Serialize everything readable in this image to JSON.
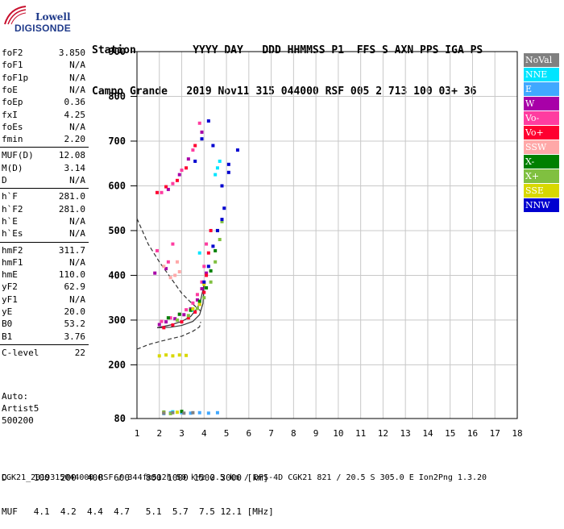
{
  "logo": {
    "line1": "Lowell",
    "line2": "DIGISONDE"
  },
  "header": {
    "row1": "Station         YYYY DAY   DDD HHMMSS P1  FFS S AXN PPS IGA PS",
    "row2": "Campo Grande   2019 Nov11 315 044000 RSF 005 2 713 100 03+ 36"
  },
  "params": [
    {
      "key": "foF2",
      "value": "3.850"
    },
    {
      "key": "foF1",
      "value": "N/A"
    },
    {
      "key": "foF1p",
      "value": "N/A"
    },
    {
      "key": "foE",
      "value": "N/A"
    },
    {
      "key": "foEp",
      "value": "0.36"
    },
    {
      "key": "fxI",
      "value": "4.25"
    },
    {
      "key": "foEs",
      "value": "N/A"
    },
    {
      "key": "fmin",
      "value": "2.20"
    },
    {
      "key": "MUF(D)",
      "value": "12.08"
    },
    {
      "key": "M(D)",
      "value": "3.14"
    },
    {
      "key": "D",
      "value": "N/A"
    },
    {
      "key": "h`F",
      "value": "281.0"
    },
    {
      "key": "h`F2",
      "value": "281.0"
    },
    {
      "key": "h`E",
      "value": "N/A"
    },
    {
      "key": "h`Es",
      "value": "N/A"
    },
    {
      "key": "hmF2",
      "value": "311.7"
    },
    {
      "key": "hmF1",
      "value": "N/A"
    },
    {
      "key": "hmE",
      "value": "110.0"
    },
    {
      "key": "yF2",
      "value": "62.9"
    },
    {
      "key": "yF1",
      "value": "N/A"
    },
    {
      "key": "yE",
      "value": "20.0"
    },
    {
      "key": "B0",
      "value": "53.2"
    },
    {
      "key": "B1",
      "value": "3.76"
    },
    {
      "key": "C-level",
      "value": "22"
    }
  ],
  "auto": {
    "line1": "Auto:",
    "line2": "Artist5",
    "line3": "500200"
  },
  "legend": [
    {
      "label": "NoVal",
      "bg": "#808080",
      "fg": "#ffffff"
    },
    {
      "label": "NNE",
      "bg": "#00e5ff",
      "fg": "#ffffff"
    },
    {
      "label": "E",
      "bg": "#40a8ff",
      "fg": "#ffffff"
    },
    {
      "label": "W",
      "bg": "#a800a8",
      "fg": "#ffffff"
    },
    {
      "label": "Vo-",
      "bg": "#ff3ca0",
      "fg": "#ffffff"
    },
    {
      "label": "Vo+",
      "bg": "#ff0030",
      "fg": "#ffffff"
    },
    {
      "label": "SSW",
      "bg": "#ffa8a8",
      "fg": "#ffffff"
    },
    {
      "label": "X-",
      "bg": "#008000",
      "fg": "#ffffff"
    },
    {
      "label": "X+",
      "bg": "#80c040",
      "fg": "#ffffff"
    },
    {
      "label": "SSE",
      "bg": "#d8d800",
      "fg": "#ffffff"
    },
    {
      "label": "NNW",
      "bg": "#0000d0",
      "fg": "#ffffff"
    }
  ],
  "bottom": {
    "row1": "D     100  200  400  600   800 1000 1500 3000 [km]",
    "row2": "MUF   4.1  4.2  4.4  4.7   5.1  5.7  7.5 12.1 [MHz]"
  },
  "footer": "CGK21_2019315044000.RSF / 344fx512h 50 kHz 2.5 km / DPS-4D CGK21 821 / 20.5 S 305.0 E Ion2Png 1.3.20",
  "chart_data": {
    "type": "scatter",
    "xlabel": "",
    "ylabel": "",
    "xlim": [
      1,
      18
    ],
    "ylim": [
      80,
      900
    ],
    "x_ticks": [
      1,
      2,
      3,
      4,
      5,
      6,
      7,
      8,
      9,
      10,
      11,
      12,
      13,
      14,
      15,
      16,
      17,
      18
    ],
    "y_ticks": [
      80,
      200,
      300,
      400,
      500,
      600,
      700,
      800,
      900
    ],
    "grid": true,
    "series": [
      {
        "name": "NNE",
        "color": "#00e5ff",
        "points": [
          [
            4.6,
            640
          ],
          [
            4.7,
            655
          ],
          [
            4.5,
            625
          ],
          [
            3.8,
            450
          ],
          [
            3.5,
            322
          ],
          [
            2.6,
            95
          ]
        ]
      },
      {
        "name": "E",
        "color": "#40a8ff",
        "points": [
          [
            3.0,
            93
          ],
          [
            3.4,
            92
          ],
          [
            3.8,
            93
          ],
          [
            4.2,
            92
          ],
          [
            4.6,
            93
          ],
          [
            2.2,
            91
          ],
          [
            2.5,
            93
          ]
        ]
      },
      {
        "name": "W",
        "color": "#a800a8",
        "points": [
          [
            2.0,
            290
          ],
          [
            2.3,
            296
          ],
          [
            2.7,
            303
          ],
          [
            3.1,
            312
          ],
          [
            3.4,
            325
          ],
          [
            3.7,
            345
          ],
          [
            3.9,
            370
          ],
          [
            4.1,
            405
          ],
          [
            2.4,
            592
          ],
          [
            2.9,
            625
          ],
          [
            3.3,
            660
          ],
          [
            3.9,
            720
          ],
          [
            1.8,
            405
          ],
          [
            2.3,
            415
          ]
        ]
      },
      {
        "name": "Vo-",
        "color": "#ff3ca0",
        "points": [
          [
            2.1,
            297
          ],
          [
            2.5,
            305
          ],
          [
            2.9,
            313
          ],
          [
            3.2,
            323
          ],
          [
            3.5,
            338
          ],
          [
            3.7,
            357
          ],
          [
            3.9,
            385
          ],
          [
            4.0,
            420
          ],
          [
            4.1,
            470
          ],
          [
            2.1,
            585
          ],
          [
            2.6,
            605
          ],
          [
            3.0,
            635
          ],
          [
            3.5,
            680
          ],
          [
            3.8,
            740
          ],
          [
            1.9,
            455
          ],
          [
            2.4,
            430
          ],
          [
            2.6,
            470
          ]
        ]
      },
      {
        "name": "Vo+",
        "color": "#ff0030",
        "points": [
          [
            2.2,
            283
          ],
          [
            2.6,
            289
          ],
          [
            3.0,
            296
          ],
          [
            3.3,
            305
          ],
          [
            3.6,
            318
          ],
          [
            3.8,
            335
          ],
          [
            4.0,
            362
          ],
          [
            4.1,
            400
          ],
          [
            4.2,
            450
          ],
          [
            4.3,
            500
          ],
          [
            1.9,
            585
          ],
          [
            2.3,
            598
          ],
          [
            2.8,
            612
          ],
          [
            3.2,
            640
          ],
          [
            3.6,
            690
          ]
        ]
      },
      {
        "name": "SSW",
        "color": "#ffa8a8",
        "points": [
          [
            2.5,
            395
          ],
          [
            2.7,
            400
          ],
          [
            2.9,
            408
          ],
          [
            2.8,
            430
          ],
          [
            2.2,
            420
          ]
        ]
      },
      {
        "name": "X-",
        "color": "#008000",
        "points": [
          [
            2.4,
            305
          ],
          [
            2.9,
            313
          ],
          [
            3.4,
            322
          ],
          [
            3.8,
            342
          ],
          [
            4.1,
            372
          ],
          [
            4.3,
            410
          ],
          [
            4.5,
            455
          ],
          [
            4.6,
            500
          ],
          [
            2.2,
            94
          ],
          [
            3.0,
            96
          ]
        ]
      },
      {
        "name": "X+",
        "color": "#80c040",
        "points": [
          [
            2.8,
            300
          ],
          [
            3.3,
            310
          ],
          [
            3.7,
            326
          ],
          [
            4.0,
            350
          ],
          [
            4.3,
            385
          ],
          [
            4.5,
            430
          ],
          [
            4.7,
            480
          ],
          [
            4.8,
            520
          ],
          [
            2.5,
            91
          ]
        ]
      },
      {
        "name": "SSE",
        "color": "#d8d800",
        "points": [
          [
            2.0,
            220
          ],
          [
            2.3,
            222
          ],
          [
            2.6,
            220
          ],
          [
            2.9,
            222
          ],
          [
            3.2,
            221
          ],
          [
            3.5,
            325
          ],
          [
            3.8,
            335
          ],
          [
            4.0,
            380
          ],
          [
            2.2,
            93
          ],
          [
            2.8,
            94
          ]
        ]
      },
      {
        "name": "NNW",
        "color": "#0000d0",
        "points": [
          [
            4.0,
            385
          ],
          [
            4.2,
            420
          ],
          [
            4.4,
            465
          ],
          [
            4.6,
            500
          ],
          [
            4.8,
            525
          ],
          [
            4.9,
            550
          ],
          [
            3.6,
            655
          ],
          [
            3.9,
            705
          ],
          [
            4.2,
            745
          ],
          [
            4.4,
            690
          ],
          [
            4.8,
            600
          ],
          [
            5.1,
            648
          ],
          [
            5.1,
            630
          ],
          [
            5.5,
            680
          ]
        ]
      },
      {
        "name": "NoVal",
        "color": "#808080",
        "points": [
          [
            2.2,
            92
          ],
          [
            2.6,
            93
          ],
          [
            3.1,
            92
          ],
          [
            3.5,
            93
          ]
        ]
      }
    ],
    "lines": [
      {
        "style": "dashed",
        "points": [
          [
            1.0,
            527
          ],
          [
            1.5,
            470
          ],
          [
            2.0,
            430
          ],
          [
            2.5,
            395
          ],
          [
            3.0,
            360
          ],
          [
            3.4,
            340
          ],
          [
            3.85,
            320
          ]
        ]
      },
      {
        "style": "dashed",
        "points": [
          [
            1.0,
            235
          ],
          [
            1.5,
            245
          ],
          [
            2.0,
            252
          ],
          [
            2.5,
            258
          ],
          [
            3.0,
            264
          ],
          [
            3.5,
            275
          ],
          [
            3.8,
            285
          ],
          [
            3.85,
            296
          ]
        ]
      },
      {
        "style": "solid",
        "points": [
          [
            1.9,
            283
          ],
          [
            2.5,
            289
          ],
          [
            3.0,
            297
          ],
          [
            3.4,
            308
          ],
          [
            3.7,
            327
          ],
          [
            3.85,
            345
          ],
          [
            3.95,
            368
          ],
          [
            4.0,
            380
          ],
          [
            3.95,
            337
          ],
          [
            3.8,
            312
          ],
          [
            3.5,
            297
          ],
          [
            3.0,
            288
          ],
          [
            2.5,
            284
          ],
          [
            1.9,
            283
          ]
        ]
      }
    ]
  }
}
